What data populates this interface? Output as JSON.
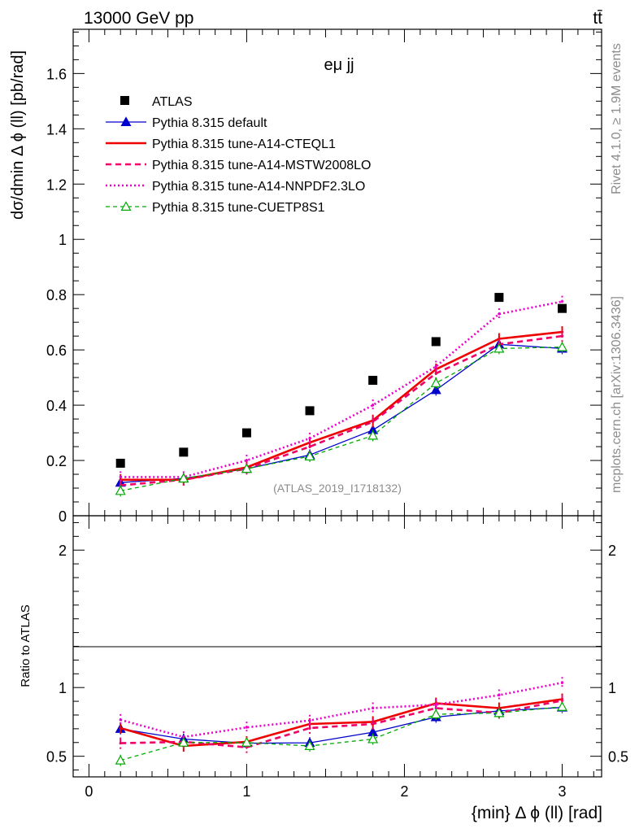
{
  "header": {
    "energy": "13000 GeV pp",
    "process": "tt̄"
  },
  "side_labels": {
    "rivet": "Rivet 4.1.0, ≥ 1.9M events",
    "mcplots": "mcplots.cern.ch [arXiv:1306.3436]"
  },
  "chart_data": [
    {
      "type": "scatter",
      "panel": "main",
      "title": "eμ jj",
      "ylabel": "dσ/dmin Δ ϕ (ll) [pb/rad]",
      "xlabel": "",
      "analysis_label": "(ATLAS_2019_I1718132)",
      "xlim": [
        -0.1,
        3.25
      ],
      "ylim": [
        0,
        1.76
      ],
      "yticks": [
        0,
        0.2,
        0.4,
        0.6,
        0.8,
        1,
        1.2,
        1.4,
        1.6
      ],
      "ytick_labels": [
        "0",
        "0.2",
        "0.4",
        "0.6",
        "0.8",
        "1",
        "1.2",
        "1.4",
        "1.6"
      ],
      "legend_position": "top-left",
      "x": [
        0.2,
        0.6,
        1.0,
        1.4,
        1.8,
        2.2,
        2.6,
        3.0
      ],
      "series": [
        {
          "name": "ATLAS",
          "color": "#000000",
          "style": "data",
          "values": [
            0.19,
            0.23,
            0.3,
            0.38,
            0.49,
            0.63,
            0.79,
            0.75
          ]
        },
        {
          "name": "Pythia 8.315 default",
          "color": "#0000cc",
          "style": "solid-thin-triangle",
          "values": [
            0.12,
            0.135,
            0.17,
            0.22,
            0.31,
            0.455,
            0.62,
            0.605
          ]
        },
        {
          "name": "Pythia 8.315 tune-A14-CTEQL1",
          "color": "#ee0000",
          "style": "solid-thick",
          "values": [
            0.13,
            0.13,
            0.175,
            0.265,
            0.345,
            0.53,
            0.64,
            0.665
          ]
        },
        {
          "name": "Pythia 8.315 tune-A14-MSTW2008LO",
          "color": "#ee0066",
          "style": "dashed-thick",
          "values": [
            0.11,
            0.13,
            0.17,
            0.25,
            0.34,
            0.515,
            0.62,
            0.65
          ]
        },
        {
          "name": "Pythia 8.315 tune-A14-NNPDF2.3LO",
          "color": "#ee00cc",
          "style": "dotted-thick",
          "values": [
            0.14,
            0.14,
            0.2,
            0.28,
            0.4,
            0.54,
            0.73,
            0.775
          ]
        },
        {
          "name": "Pythia 8.315 tune-CUETP8S1",
          "color": "#00aa00",
          "style": "dashed-thin-open-triangle",
          "values": [
            0.09,
            0.135,
            0.17,
            0.215,
            0.29,
            0.48,
            0.605,
            0.61
          ]
        }
      ]
    },
    {
      "type": "line",
      "panel": "ratio",
      "ylabel": "Ratio to ATLAS",
      "xlabel": "{min} Δ ϕ (ll) [rad]",
      "xlim": [
        -0.1,
        3.25
      ],
      "ylim": [
        0.35,
        2.25
      ],
      "xticks": [
        0,
        1,
        2,
        3
      ],
      "xtick_labels": [
        "0",
        "1",
        "2",
        "3"
      ],
      "yticks": [
        0.5,
        1,
        2
      ],
      "ytick_labels": [
        "0.5",
        "1",
        "2"
      ],
      "x": [
        0.2,
        0.6,
        1.0,
        1.4,
        1.8,
        2.2,
        2.6,
        3.0
      ],
      "series": [
        {
          "name": "Pythia 8.315 default",
          "values": [
            0.7,
            0.625,
            0.595,
            0.598,
            0.675,
            0.785,
            0.83,
            0.855
          ]
        },
        {
          "name": "Pythia 8.315 tune-A14-CTEQL1",
          "values": [
            0.705,
            0.575,
            0.605,
            0.735,
            0.75,
            0.885,
            0.85,
            0.915
          ]
        },
        {
          "name": "Pythia 8.315 tune-A14-MSTW2008LO",
          "values": [
            0.595,
            0.605,
            0.565,
            0.705,
            0.735,
            0.85,
            0.815,
            0.905
          ]
        },
        {
          "name": "Pythia 8.315 tune-A14-NNPDF2.3LO",
          "values": [
            0.765,
            0.64,
            0.71,
            0.76,
            0.85,
            0.875,
            0.945,
            1.035
          ]
        },
        {
          "name": "Pythia 8.315 tune-CUETP8S1",
          "values": [
            0.47,
            0.6,
            0.6,
            0.575,
            0.625,
            0.805,
            0.815,
            0.86
          ]
        }
      ]
    }
  ]
}
